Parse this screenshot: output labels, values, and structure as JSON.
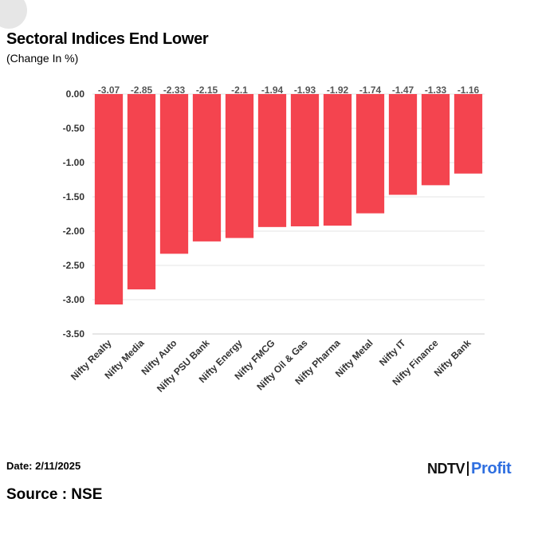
{
  "header": {
    "title": "Sectoral Indices End Lower",
    "subtitle": "(Change In %)"
  },
  "footer": {
    "date": "Date: 2/11/2025",
    "source": "Source : NSE",
    "logo_primary": "NDTV",
    "logo_secondary": "Profit"
  },
  "colors": {
    "bar": "#f4444f",
    "grid": "#e4e4e4",
    "axis_text": "#333333",
    "label_text": "#555555"
  },
  "chart_data": {
    "type": "bar",
    "title": "Sectoral Indices End Lower",
    "subtitle": "(Change In %)",
    "xlabel": "",
    "ylabel": "",
    "categories": [
      "Nifty Realty",
      "Nifty Media",
      "Nifty Auto",
      "Nifty PSU Bank",
      "Nifty Energy",
      "Nifty FMCG",
      "Nifty Oil & Gas",
      "Nifty Pharma",
      "Nifty Metal",
      "Nifty IT",
      "Nifty Finance",
      "Nifty Bank"
    ],
    "values": [
      -3.07,
      -2.85,
      -2.33,
      -2.15,
      -2.1,
      -1.94,
      -1.93,
      -1.92,
      -1.74,
      -1.47,
      -1.33,
      -1.16
    ],
    "ylim": [
      -3.5,
      0
    ],
    "yticks": [
      "0.00",
      "-0.50",
      "-1.00",
      "-1.50",
      "-2.00",
      "-2.50",
      "-3.00",
      "-3.50"
    ],
    "grid": true,
    "legend": "none"
  }
}
